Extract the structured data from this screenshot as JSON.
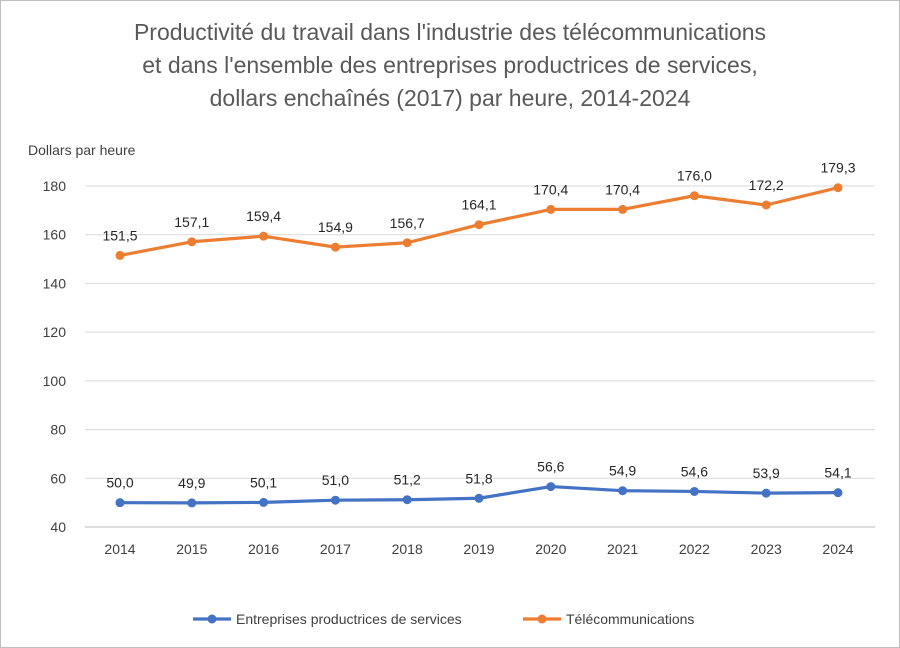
{
  "chart_data": {
    "type": "line",
    "title": [
      "Productivité du travail dans l'industrie des télécommunications",
      "et dans l'ensemble des entreprises productrices de services,",
      "dollars enchaînés (2017) par heure, 2014-2024"
    ],
    "ylabel": "Dollars par heure",
    "xlabel": "",
    "categories": [
      "2014",
      "2015",
      "2016",
      "2017",
      "2018",
      "2019",
      "2020",
      "2021",
      "2022",
      "2023",
      "2024"
    ],
    "ylim": [
      40,
      180
    ],
    "yticks": [
      40,
      60,
      80,
      100,
      120,
      140,
      160,
      180
    ],
    "grid": true,
    "legend_position": "bottom",
    "series": [
      {
        "name": "Entreprises productrices de services",
        "color": "#4472C4",
        "values": [
          50.0,
          49.9,
          50.1,
          51.0,
          51.2,
          51.8,
          56.6,
          54.9,
          54.6,
          53.9,
          54.1
        ],
        "labels": [
          "50,0",
          "49,9",
          "50,1",
          "51,0",
          "51,2",
          "51,8",
          "56,6",
          "54,9",
          "54,6",
          "53,9",
          "54,1"
        ]
      },
      {
        "name": "Télécommunications",
        "color": "#ED7D31",
        "values": [
          151.5,
          157.1,
          159.4,
          154.9,
          156.7,
          164.1,
          170.4,
          170.4,
          176.0,
          172.2,
          179.3
        ],
        "labels": [
          "151,5",
          "157,1",
          "159,4",
          "154,9",
          "156,7",
          "164,1",
          "170,4",
          "170,4",
          "176,0",
          "172,2",
          "179,3"
        ]
      }
    ]
  }
}
